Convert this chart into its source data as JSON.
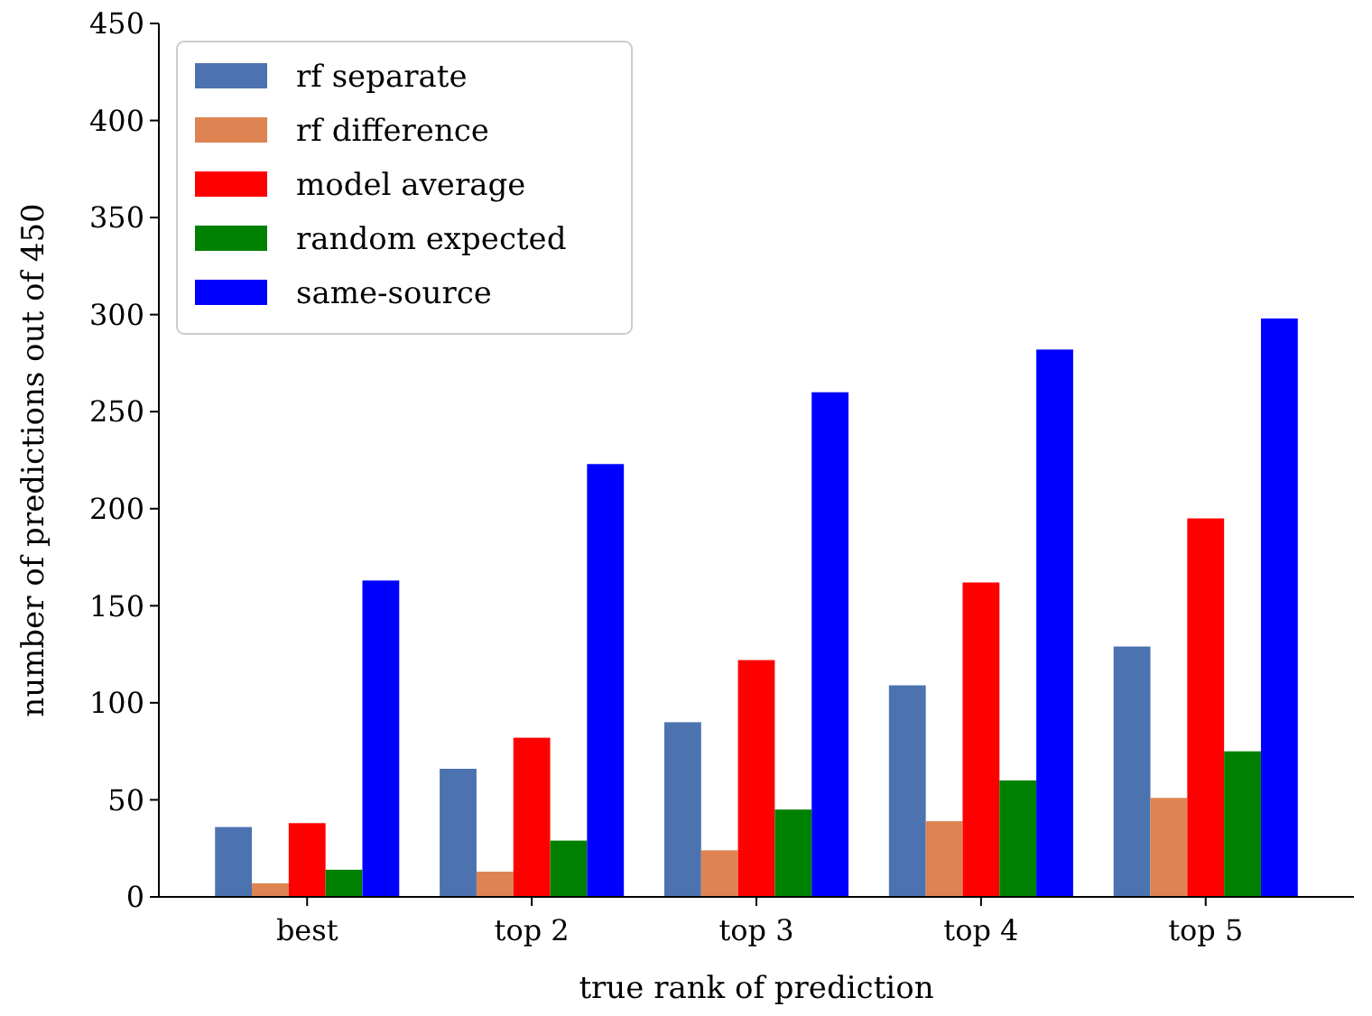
{
  "chart_data": {
    "type": "bar",
    "xlabel": "true rank of prediction",
    "ylabel": "number of predictions out of 450",
    "categories": [
      "best",
      "top 2",
      "top 3",
      "top 4",
      "top 5"
    ],
    "series": [
      {
        "name": "rf separate",
        "color": "#4c72b0",
        "values": [
          36,
          66,
          90,
          109,
          129
        ]
      },
      {
        "name": "rf difference",
        "color": "#dd8452",
        "values": [
          7,
          13,
          24,
          39,
          51
        ]
      },
      {
        "name": "model average",
        "color": "#ff0000",
        "values": [
          38,
          82,
          122,
          162,
          195
        ]
      },
      {
        "name": "random expected",
        "color": "#008000",
        "values": [
          14,
          29,
          45,
          60,
          75
        ]
      },
      {
        "name": "same-source",
        "color": "#0000ff",
        "values": [
          163,
          223,
          260,
          282,
          298
        ]
      }
    ],
    "ylim": [
      0,
      450
    ],
    "yticks": [
      0,
      50,
      100,
      150,
      200,
      250,
      300,
      350,
      400,
      450
    ],
    "legend": "top left",
    "grid": false
  }
}
